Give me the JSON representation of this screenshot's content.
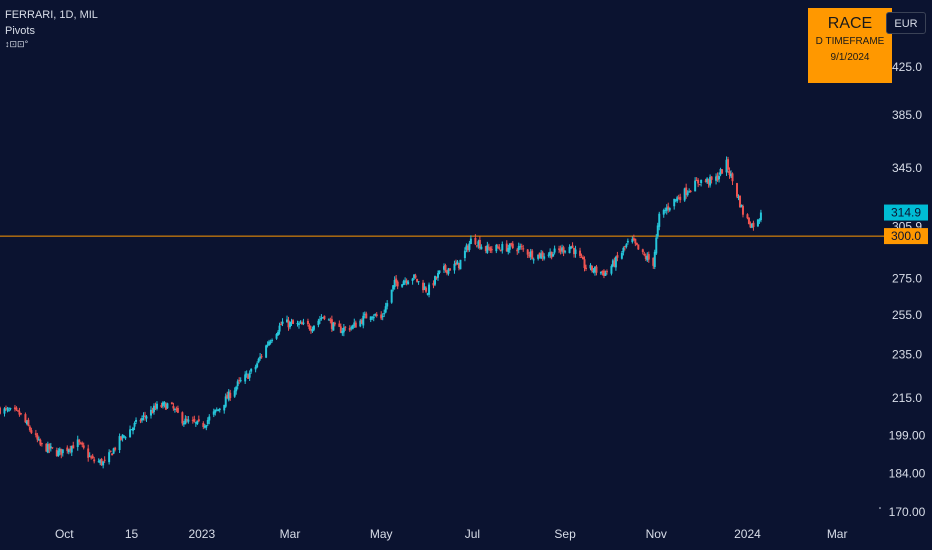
{
  "header": {
    "symbol_line": "FERRARI, 1D, MIL",
    "indicator": "Pivots",
    "indicator_flag": "↕⊡⊡°"
  },
  "badge": {
    "line1": "RACE",
    "line2": "D TIMEFRAME",
    "line3": "9/1/2024"
  },
  "currency_button": "EUR",
  "colors": {
    "background": "#0b1330",
    "up": "#26c6da",
    "down": "#ef5350",
    "pivot_line": "#ff9800",
    "badge": "#ff9800",
    "last_price_tag": "#00bcd4"
  },
  "chart_data": {
    "type": "candlestick",
    "scale": "log",
    "y_ticks": [
      425.0,
      385.0,
      345.0,
      300.0,
      275.0,
      255.0,
      235.0,
      215.0,
      199.0,
      184.0,
      170.0
    ],
    "y_tick_labels": [
      "425.0",
      "385.0",
      "345.0",
      "300.0",
      "275.0",
      "255.0",
      "235.0",
      "215.0",
      "199.00",
      "184.00",
      "170.00"
    ],
    "x_tick_labels": [
      "Oct",
      "15",
      "2023",
      "Mar",
      "May",
      "Jul",
      "Sep",
      "Nov",
      "2024",
      "Mar"
    ],
    "x_tick_dates": [
      "2022-10-01",
      "2022-11-15",
      "2023-01-01",
      "2023-03-01",
      "2023-05-01",
      "2023-07-01",
      "2023-09-01",
      "2023-11-01",
      "2024-01-01",
      "2024-03-01"
    ],
    "x_range": [
      "2022-08-19",
      "2024-03-31"
    ],
    "y_range": [
      170,
      470
    ],
    "pivot_level": 300.0,
    "pivot_label": "300.0",
    "last_price": 314.9,
    "last_price_label": "314.9",
    "hidden_label_fragment": "305.9",
    "close_path": [
      [
        "2022-08-19",
        210
      ],
      [
        "2022-09-01",
        208
      ],
      [
        "2022-09-15",
        195
      ],
      [
        "2022-09-27",
        192
      ],
      [
        "2022-10-10",
        196
      ],
      [
        "2022-10-20",
        189
      ],
      [
        "2022-10-28",
        188
      ],
      [
        "2022-11-07",
        197
      ],
      [
        "2022-11-20",
        205
      ],
      [
        "2022-12-02",
        211
      ],
      [
        "2022-12-10",
        212
      ],
      [
        "2022-12-20",
        205
      ],
      [
        "2023-01-01",
        203
      ],
      [
        "2023-01-12",
        210
      ],
      [
        "2023-01-25",
        221
      ],
      [
        "2023-02-05",
        228
      ],
      [
        "2023-02-15",
        242
      ],
      [
        "2023-02-24",
        251
      ],
      [
        "2023-03-03",
        250
      ],
      [
        "2023-03-15",
        249
      ],
      [
        "2023-03-24",
        255
      ],
      [
        "2023-04-01",
        247
      ],
      [
        "2023-04-12",
        249
      ],
      [
        "2023-04-24",
        256
      ],
      [
        "2023-05-01",
        253
      ],
      [
        "2023-05-10",
        272
      ],
      [
        "2023-05-22",
        276
      ],
      [
        "2023-06-01",
        268
      ],
      [
        "2023-06-10",
        279
      ],
      [
        "2023-06-22",
        283
      ],
      [
        "2023-07-01",
        299
      ],
      [
        "2023-07-10",
        292
      ],
      [
        "2023-07-22",
        293
      ],
      [
        "2023-08-01",
        293
      ],
      [
        "2023-08-12",
        288
      ],
      [
        "2023-08-25",
        290
      ],
      [
        "2023-09-05",
        294
      ],
      [
        "2023-09-15",
        281
      ],
      [
        "2023-09-28",
        278
      ],
      [
        "2023-10-05",
        285
      ],
      [
        "2023-10-15",
        298
      ],
      [
        "2023-10-22",
        289
      ],
      [
        "2023-10-30",
        284
      ],
      [
        "2023-11-03",
        312
      ],
      [
        "2023-11-12",
        322
      ],
      [
        "2023-11-22",
        330
      ],
      [
        "2023-11-30",
        336
      ],
      [
        "2023-12-10",
        336
      ],
      [
        "2023-12-18",
        348
      ],
      [
        "2023-12-24",
        330
      ],
      [
        "2023-12-30",
        312
      ],
      [
        "2024-01-04",
        307
      ],
      [
        "2024-01-08",
        309
      ],
      [
        "2024-01-10",
        314.9
      ]
    ]
  }
}
